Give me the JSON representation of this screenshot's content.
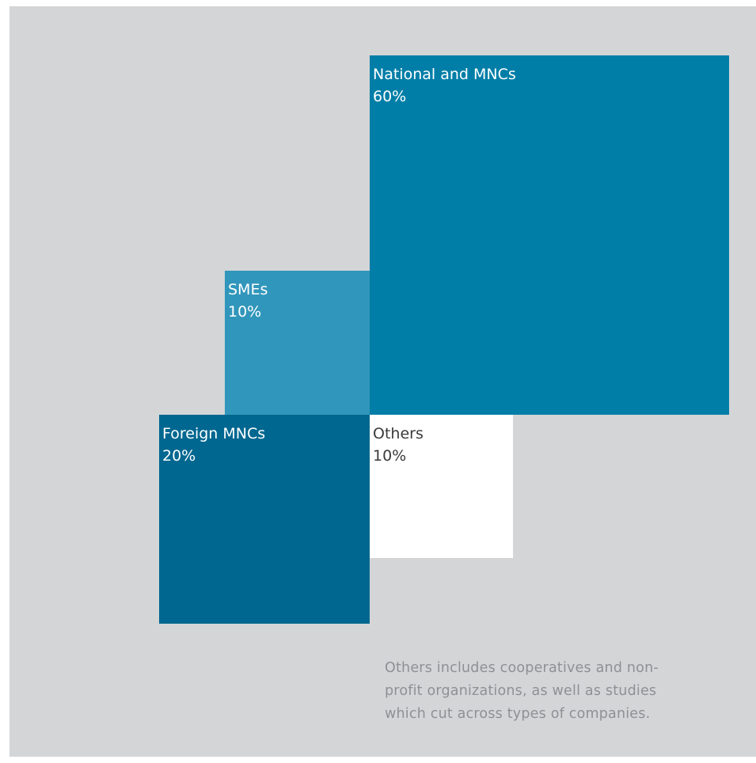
{
  "chart_data": {
    "type": "treemap",
    "segments": [
      {
        "name": "National and MNCs",
        "label": "60%",
        "value": 60,
        "color": "#007ea7",
        "text_color": "#ffffff"
      },
      {
        "name": "SMEs",
        "label": "10%",
        "value": 10,
        "color": "#3196bb",
        "text_color": "#ffffff"
      },
      {
        "name": "Foreign MNCs",
        "label": "20%",
        "value": 20,
        "color": "#006790",
        "text_color": "#ffffff"
      },
      {
        "name": "Others",
        "label": "10%",
        "value": 10,
        "color": "#ffffff",
        "text_color": "#3a3a3a"
      }
    ]
  },
  "footnote": {
    "lines": [
      "Others includes cooperatives and non-",
      "profit organizations, as well as studies",
      "which cut across types of companies."
    ]
  },
  "colors": {
    "panel_background": "#d4d5d7",
    "footnote_text": "#8e9094"
  }
}
